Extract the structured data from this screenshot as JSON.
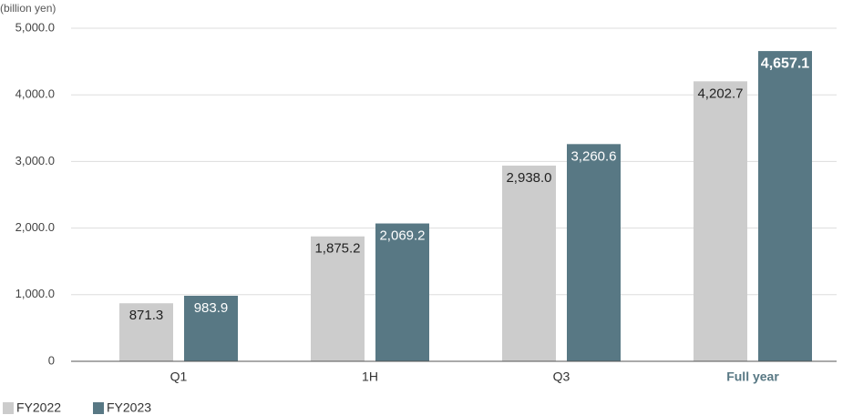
{
  "chart_data": {
    "type": "bar",
    "unit_label": "(billion yen)",
    "categories": [
      "Q1",
      "1H",
      "Q3",
      "Full year"
    ],
    "series": [
      {
        "name": "FY2022",
        "color": "#cccccc",
        "label_color": "#222222",
        "values": [
          871.3,
          1875.2,
          2938.0,
          4202.7
        ],
        "value_labels": [
          "871.3",
          "1,875.2",
          "2,938.0",
          "4,202.7"
        ]
      },
      {
        "name": "FY2023",
        "color": "#587884",
        "label_color": "#ffffff",
        "values": [
          983.9,
          2069.2,
          3260.6,
          4657.1
        ],
        "value_labels": [
          "983.9",
          "2,069.2",
          "3,260.6",
          "4,657.1"
        ]
      }
    ],
    "ylim": [
      0,
      5000
    ],
    "yticks": [
      0,
      {
        "value": 1000,
        "label": "1,000.0"
      },
      {
        "value": 2000,
        "label": "2,000.0"
      },
      {
        "value": 3000,
        "label": "3,000.0"
      },
      {
        "value": 4000,
        "label": "4,000.0"
      },
      {
        "value": 5000,
        "label": "5,000.0"
      }
    ],
    "grid": true,
    "legend": "bottom-left"
  }
}
